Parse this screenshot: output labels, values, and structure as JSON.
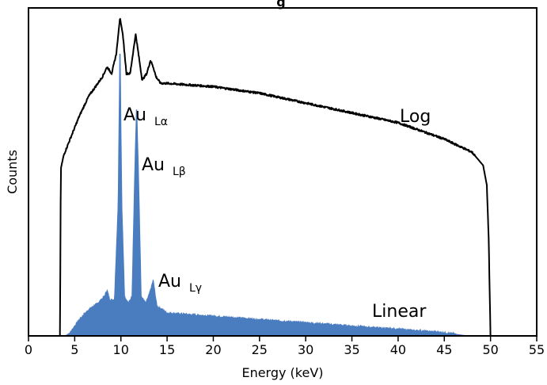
{
  "chart_data": {
    "type": "area",
    "title": "g",
    "xlabel": "Energy (keV)",
    "ylabel": "Counts",
    "xlim": [
      0,
      55
    ],
    "x_ticks": [
      0,
      5,
      10,
      15,
      20,
      25,
      30,
      35,
      40,
      45,
      50,
      55
    ],
    "grid": false,
    "colors": {
      "linear_fill": "#4a7cc0",
      "log_line": "#000000",
      "axis": "#000000"
    },
    "annotations": [
      {
        "text": "Au",
        "sub": "Lα",
        "x": 10.6,
        "label": "au-l-alpha"
      },
      {
        "text": "Au",
        "sub": "Lβ",
        "x": 12.3,
        "label": "au-l-beta"
      },
      {
        "text": "Au",
        "sub": "Lγ",
        "x": 14.4,
        "label": "au-l-gamma"
      },
      {
        "text": "Log",
        "x": 40.5,
        "label": "log"
      },
      {
        "text": "Linear",
        "x": 37.5,
        "label": "linear"
      }
    ],
    "series": [
      {
        "name": "Log",
        "style": "line",
        "x": [
          3.4,
          3.5,
          3.8,
          4.5,
          5.5,
          6.5,
          7.5,
          8.0,
          8.5,
          9.0,
          9.5,
          9.9,
          10.2,
          10.6,
          11.0,
          11.3,
          11.6,
          11.9,
          12.3,
          12.8,
          13.2,
          13.5,
          13.8,
          14.3,
          15,
          20,
          25,
          30,
          35,
          40,
          45,
          48,
          49.2,
          49.6,
          49.8,
          50.0
        ],
        "y": [
          0.0,
          0.51,
          0.55,
          0.6,
          0.67,
          0.73,
          0.77,
          0.79,
          0.82,
          0.8,
          0.86,
          0.97,
          0.92,
          0.8,
          0.8,
          0.86,
          0.92,
          0.86,
          0.78,
          0.8,
          0.84,
          0.82,
          0.79,
          0.77,
          0.77,
          0.76,
          0.74,
          0.71,
          0.68,
          0.65,
          0.6,
          0.56,
          0.52,
          0.46,
          0.3,
          0.0
        ]
      },
      {
        "name": "Linear",
        "style": "area",
        "x": [
          4.0,
          4.5,
          5.5,
          6.5,
          7.5,
          8.2,
          8.5,
          8.8,
          9.3,
          9.7,
          9.9,
          10.1,
          10.4,
          10.8,
          11.2,
          11.5,
          11.7,
          11.9,
          12.2,
          12.7,
          13.1,
          13.5,
          13.9,
          14.5,
          15,
          20,
          25,
          30,
          35,
          40,
          45,
          47.5
        ],
        "y": [
          0.0,
          0.01,
          0.05,
          0.08,
          0.1,
          0.12,
          0.14,
          0.11,
          0.11,
          0.4,
          0.91,
          0.4,
          0.12,
          0.1,
          0.12,
          0.5,
          0.71,
          0.5,
          0.12,
          0.1,
          0.13,
          0.17,
          0.09,
          0.08,
          0.07,
          0.06,
          0.05,
          0.04,
          0.03,
          0.02,
          0.01,
          0.0
        ]
      }
    ]
  }
}
